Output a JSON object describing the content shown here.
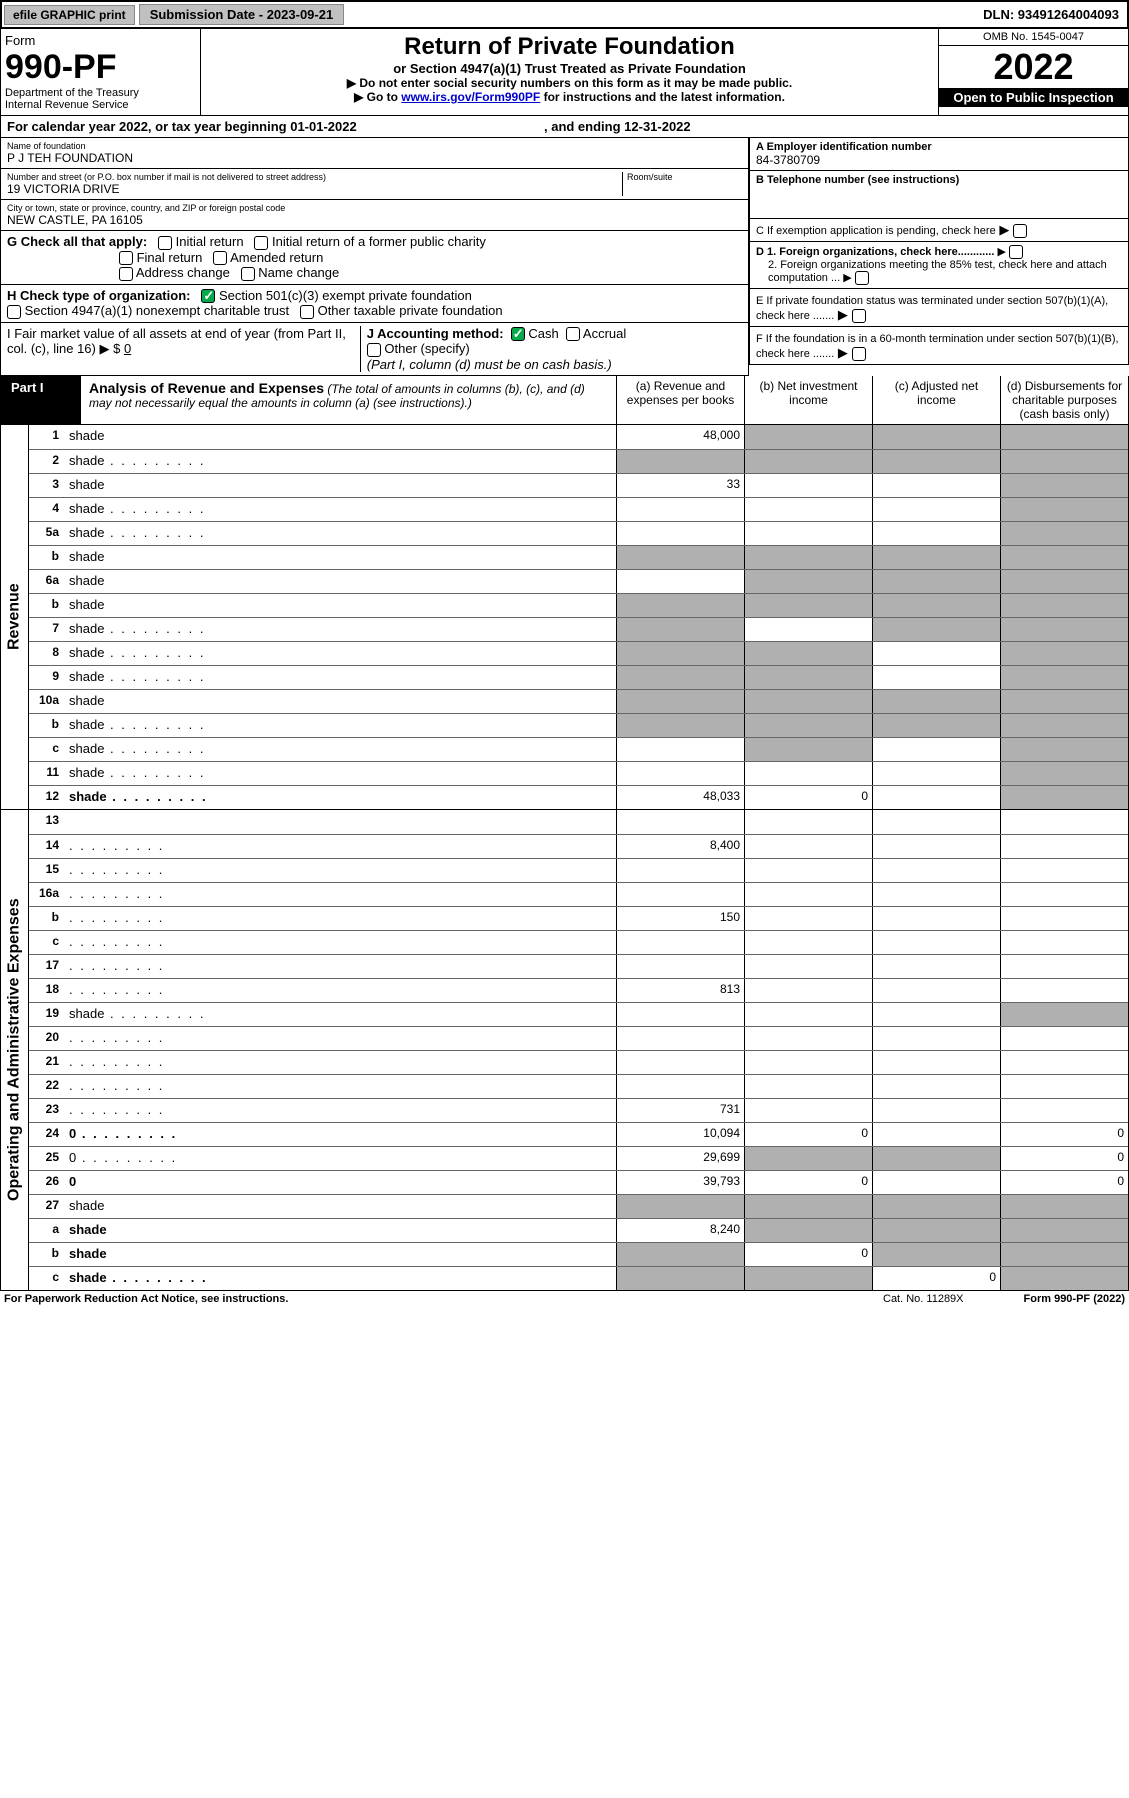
{
  "topbar": {
    "efile": "efile GRAPHIC print",
    "submission_label": "Submission Date - 2023-09-21",
    "dln": "DLN: 93491264004093"
  },
  "header": {
    "form_label": "Form",
    "form_no": "990-PF",
    "dept": "Department of the Treasury",
    "irs": "Internal Revenue Service",
    "title": "Return of Private Foundation",
    "subtitle": "or Section 4947(a)(1) Trust Treated as Private Foundation",
    "note1": "▶ Do not enter social security numbers on this form as it may be made public.",
    "note2_pre": "▶ Go to ",
    "note2_link": "www.irs.gov/Form990PF",
    "note2_post": " for instructions and the latest information.",
    "omb": "OMB No. 1545-0047",
    "year": "2022",
    "inspect": "Open to Public Inspection"
  },
  "calrow": {
    "text_a": "For calendar year 2022, or tax year beginning 01-01-2022",
    "text_b": ", and ending 12-31-2022"
  },
  "entity": {
    "name_lbl": "Name of foundation",
    "name": "P J TEH FOUNDATION",
    "addr_lbl": "Number and street (or P.O. box number if mail is not delivered to street address)",
    "addr": "19 VICTORIA DRIVE",
    "room_lbl": "Room/suite",
    "city_lbl": "City or town, state or province, country, and ZIP or foreign postal code",
    "city": "NEW CASTLE, PA  16105",
    "ein_lbl": "A Employer identification number",
    "ein": "84-3780709",
    "phone_lbl": "B Telephone number (see instructions)",
    "c_lbl": "C If exemption application is pending, check here",
    "d1_lbl": "D 1. Foreign organizations, check here............",
    "d2_lbl": "2. Foreign organizations meeting the 85% test, check here and attach computation ...",
    "e_lbl": "E If private foundation status was terminated under section 507(b)(1)(A), check here .......",
    "f_lbl": "F If the foundation is in a 60-month termination under section 507(b)(1)(B), check here ......."
  },
  "checks": {
    "g_lbl": "G Check all that apply:",
    "g_opts": [
      "Initial return",
      "Initial return of a former public charity",
      "Final return",
      "Amended return",
      "Address change",
      "Name change"
    ],
    "h_lbl": "H Check type of organization:",
    "h_opt1": "Section 501(c)(3) exempt private foundation",
    "h_opt2": "Section 4947(a)(1) nonexempt charitable trust",
    "h_opt3": "Other taxable private foundation",
    "i_lbl": "I Fair market value of all assets at end of year (from Part II, col. (c), line 16) ▶ $",
    "i_val": "0",
    "j_lbl": "J Accounting method:",
    "j_cash": "Cash",
    "j_accrual": "Accrual",
    "j_other": "Other (specify)",
    "j_note": "(Part I, column (d) must be on cash basis.)"
  },
  "part1": {
    "label": "Part I",
    "title": "Analysis of Revenue and Expenses",
    "note": "(The total of amounts in columns (b), (c), and (d) may not necessarily equal the amounts in column (a) (see instructions).)",
    "col_a": "(a) Revenue and expenses per books",
    "col_b": "(b) Net investment income",
    "col_c": "(c) Adjusted net income",
    "col_d": "(d) Disbursements for charitable purposes (cash basis only)"
  },
  "side_labels": {
    "revenue": "Revenue",
    "expenses": "Operating and Administrative Expenses"
  },
  "rows": [
    {
      "n": "1",
      "d": "shade",
      "a": "48,000",
      "b": "shade",
      "c": "shade"
    },
    {
      "n": "2",
      "d": "shade",
      "a": "shade",
      "b": "shade",
      "c": "shade",
      "dots": true
    },
    {
      "n": "3",
      "d": "shade",
      "a": "33",
      "b": "",
      "c": ""
    },
    {
      "n": "4",
      "d": "shade",
      "a": "",
      "b": "",
      "c": "",
      "dots": true
    },
    {
      "n": "5a",
      "d": "shade",
      "a": "",
      "b": "",
      "c": "",
      "dots": true
    },
    {
      "n": "b",
      "d": "shade",
      "a": "shade",
      "b": "shade",
      "c": "shade"
    },
    {
      "n": "6a",
      "d": "shade",
      "a": "",
      "b": "shade",
      "c": "shade"
    },
    {
      "n": "b",
      "d": "shade",
      "a": "shade",
      "b": "shade",
      "c": "shade"
    },
    {
      "n": "7",
      "d": "shade",
      "a": "shade",
      "b": "",
      "c": "shade",
      "dots": true
    },
    {
      "n": "8",
      "d": "shade",
      "a": "shade",
      "b": "shade",
      "c": "",
      "dots": true
    },
    {
      "n": "9",
      "d": "shade",
      "a": "shade",
      "b": "shade",
      "c": "",
      "dots": true
    },
    {
      "n": "10a",
      "d": "shade",
      "a": "shade",
      "b": "shade",
      "c": "shade"
    },
    {
      "n": "b",
      "d": "shade",
      "a": "shade",
      "b": "shade",
      "c": "shade",
      "dots": true
    },
    {
      "n": "c",
      "d": "shade",
      "a": "",
      "b": "shade",
      "c": "",
      "dots": true
    },
    {
      "n": "11",
      "d": "shade",
      "a": "",
      "b": "",
      "c": "",
      "dots": true
    },
    {
      "n": "12",
      "d": "shade",
      "a": "48,033",
      "b": "0",
      "c": "",
      "dots": true,
      "bold": true
    }
  ],
  "exp_rows": [
    {
      "n": "13",
      "d": "",
      "a": "",
      "b": "",
      "c": ""
    },
    {
      "n": "14",
      "d": "",
      "a": "8,400",
      "b": "",
      "c": "",
      "dots": true
    },
    {
      "n": "15",
      "d": "",
      "a": "",
      "b": "",
      "c": "",
      "dots": true
    },
    {
      "n": "16a",
      "d": "",
      "a": "",
      "b": "",
      "c": "",
      "dots": true
    },
    {
      "n": "b",
      "d": "",
      "a": "150",
      "b": "",
      "c": "",
      "dots": true
    },
    {
      "n": "c",
      "d": "",
      "a": "",
      "b": "",
      "c": "",
      "dots": true
    },
    {
      "n": "17",
      "d": "",
      "a": "",
      "b": "",
      "c": "",
      "dots": true
    },
    {
      "n": "18",
      "d": "",
      "a": "813",
      "b": "",
      "c": "",
      "dots": true
    },
    {
      "n": "19",
      "d": "shade",
      "a": "",
      "b": "",
      "c": "",
      "dots": true
    },
    {
      "n": "20",
      "d": "",
      "a": "",
      "b": "",
      "c": "",
      "dots": true
    },
    {
      "n": "21",
      "d": "",
      "a": "",
      "b": "",
      "c": "",
      "dots": true
    },
    {
      "n": "22",
      "d": "",
      "a": "",
      "b": "",
      "c": "",
      "dots": true
    },
    {
      "n": "23",
      "d": "",
      "a": "731",
      "b": "",
      "c": "",
      "dots": true
    },
    {
      "n": "24",
      "d": "0",
      "a": "10,094",
      "b": "0",
      "c": "",
      "dots": true,
      "bold": true
    },
    {
      "n": "25",
      "d": "0",
      "a": "29,699",
      "b": "shade",
      "c": "shade",
      "dots": true
    },
    {
      "n": "26",
      "d": "0",
      "a": "39,793",
      "b": "0",
      "c": "",
      "bold": true
    },
    {
      "n": "27",
      "d": "shade",
      "a": "shade",
      "b": "shade",
      "c": "shade"
    },
    {
      "n": "a",
      "d": "shade",
      "a": "8,240",
      "b": "shade",
      "c": "shade",
      "bold": true
    },
    {
      "n": "b",
      "d": "shade",
      "a": "shade",
      "b": "0",
      "c": "shade",
      "bold": true
    },
    {
      "n": "c",
      "d": "shade",
      "a": "shade",
      "b": "shade",
      "c": "0",
      "bold": true,
      "dots": true
    }
  ],
  "footer": {
    "left": "For Paperwork Reduction Act Notice, see instructions.",
    "mid": "Cat. No. 11289X",
    "right": "Form 990-PF (2022)"
  },
  "colors": {
    "shade": "#b0b0b0",
    "link": "#0000cc",
    "check_green": "#06aa4a"
  }
}
